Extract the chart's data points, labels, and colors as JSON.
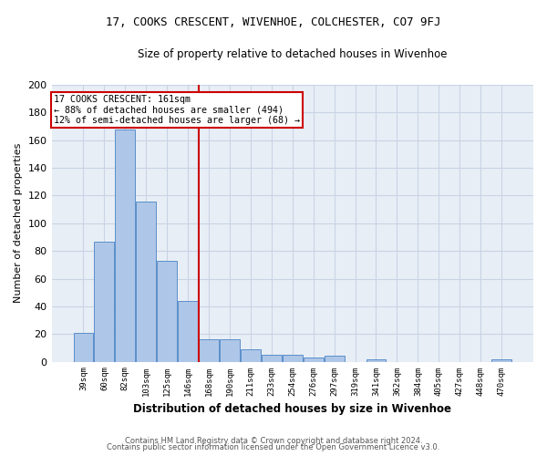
{
  "title1": "17, COOKS CRESCENT, WIVENHOE, COLCHESTER, CO7 9FJ",
  "title2": "Size of property relative to detached houses in Wivenhoe",
  "xlabel": "Distribution of detached houses by size in Wivenhoe",
  "ylabel": "Number of detached properties",
  "categories": [
    "39sqm",
    "60sqm",
    "82sqm",
    "103sqm",
    "125sqm",
    "146sqm",
    "168sqm",
    "190sqm",
    "211sqm",
    "233sqm",
    "254sqm",
    "276sqm",
    "297sqm",
    "319sqm",
    "341sqm",
    "362sqm",
    "384sqm",
    "405sqm",
    "427sqm",
    "448sqm",
    "470sqm"
  ],
  "values": [
    21,
    87,
    168,
    116,
    73,
    44,
    16,
    16,
    9,
    5,
    5,
    3,
    4,
    0,
    2,
    0,
    0,
    0,
    0,
    0,
    2
  ],
  "bar_color": "#aec6e8",
  "bar_edge_color": "#5b8fc9",
  "reference_line_index": 6,
  "reference_line_color": "#cc0000",
  "annotation_line1": "17 COOKS CRESCENT: 161sqm",
  "annotation_line2": "← 88% of detached houses are smaller (494)",
  "annotation_line3": "12% of semi-detached houses are larger (68) →",
  "annotation_box_color": "#cc0000",
  "ylim": [
    0,
    200
  ],
  "yticks": [
    0,
    20,
    40,
    60,
    80,
    100,
    120,
    140,
    160,
    180,
    200
  ],
  "grid_color": "#c8d4e4",
  "background_color": "#e8eef6",
  "footer1": "Contains HM Land Registry data © Crown copyright and database right 2024.",
  "footer2": "Contains public sector information licensed under the Open Government Licence v3.0."
}
